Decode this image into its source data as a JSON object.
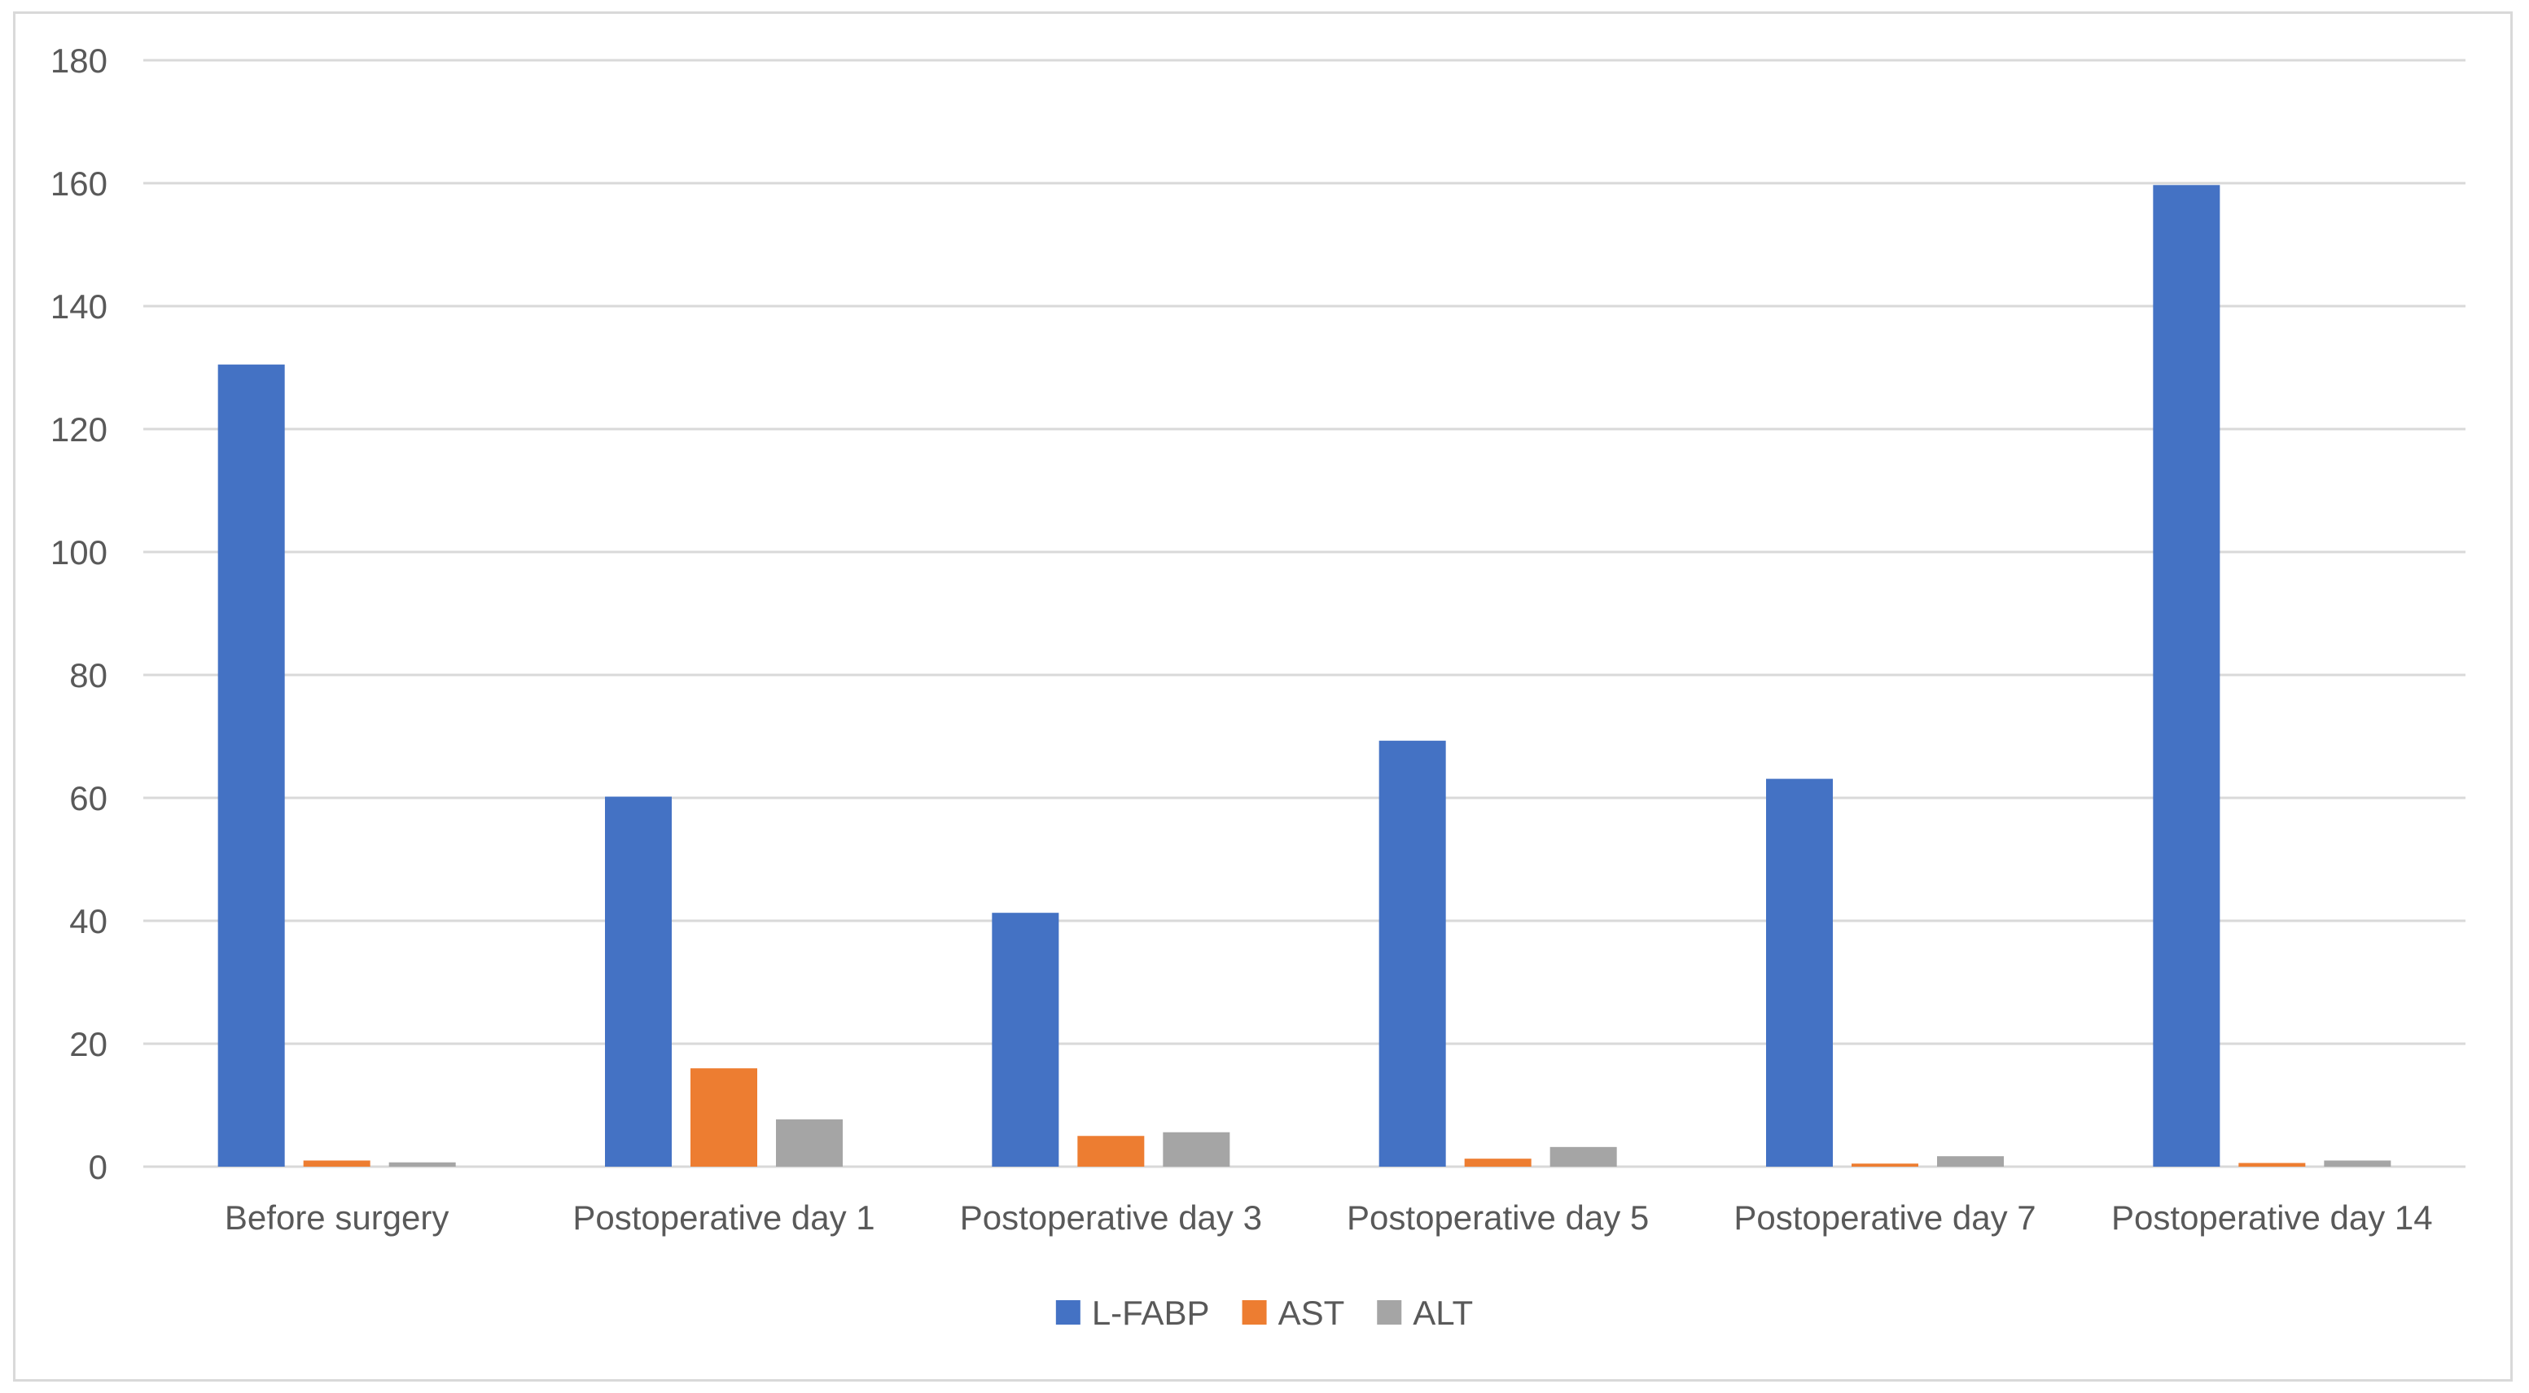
{
  "chart_data": {
    "type": "bar",
    "title": "",
    "xlabel": "",
    "ylabel": "",
    "ylim": [
      0,
      180
    ],
    "y_ticks": [
      "0",
      "20",
      "40",
      "60",
      "80",
      "100",
      "120",
      "140",
      "160",
      "180"
    ],
    "grid": true,
    "legend_position": "bottom",
    "categories": [
      "Before surgery",
      "Postoperative day 1",
      "Postoperative day 3",
      "Postoperative day 5",
      "Postoperative day 7",
      "Postoperative day 14"
    ],
    "series": [
      {
        "name": "L-FABP",
        "color": "#4472c4",
        "values": [
          130.5,
          60.2,
          41.3,
          69.3,
          63.1,
          159.7
        ]
      },
      {
        "name": "AST",
        "color": "#ed7d31",
        "values": [
          1.0,
          16.0,
          5.0,
          1.3,
          0.5,
          0.6
        ]
      },
      {
        "name": "ALT",
        "color": "#a5a5a5",
        "values": [
          0.7,
          7.7,
          5.6,
          3.2,
          1.7,
          1.0
        ]
      }
    ]
  },
  "colors": {
    "gridline": "#d9d9d9",
    "axis_text": "#595959",
    "border": "#d9d9d9"
  }
}
